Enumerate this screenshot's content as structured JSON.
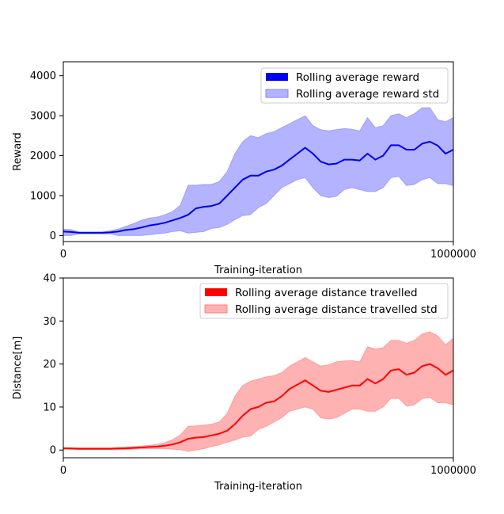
{
  "chart_data": [
    {
      "type": "line",
      "xlabel": "Training-iteration",
      "ylabel": "Reward",
      "xlim": [
        0,
        1000000
      ],
      "ylim": [
        -150,
        4350
      ],
      "xticks": [
        0,
        1000000
      ],
      "xtick_labels": [
        "0",
        "1000000"
      ],
      "yticks": [
        0,
        1000,
        2000,
        3000,
        4000
      ],
      "ytick_labels": [
        "0",
        "1000",
        "2000",
        "3000",
        "4000"
      ],
      "grid": false,
      "legend_position": "top-right",
      "x": [
        0,
        20000,
        40000,
        60000,
        80000,
        100000,
        120000,
        140000,
        160000,
        180000,
        200000,
        220000,
        240000,
        260000,
        280000,
        300000,
        320000,
        340000,
        360000,
        380000,
        400000,
        420000,
        440000,
        460000,
        480000,
        500000,
        520000,
        540000,
        560000,
        580000,
        600000,
        620000,
        640000,
        660000,
        680000,
        700000,
        720000,
        740000,
        760000,
        780000,
        800000,
        820000,
        840000,
        860000,
        880000,
        900000,
        920000,
        940000,
        960000,
        980000,
        1000000
      ],
      "series": [
        {
          "name": "Rolling average reward",
          "color": "#0000ee",
          "values": [
            100,
            90,
            70,
            70,
            70,
            70,
            80,
            100,
            140,
            160,
            200,
            250,
            280,
            320,
            380,
            440,
            520,
            680,
            720,
            740,
            800,
            1000,
            1200,
            1400,
            1500,
            1500,
            1600,
            1650,
            1750,
            1900,
            2050,
            2200,
            2050,
            1850,
            1780,
            1800,
            1900,
            1900,
            1880,
            2050,
            1900,
            2000,
            2260,
            2260,
            2150,
            2150,
            2300,
            2350,
            2250,
            2050,
            2150
          ]
        }
      ],
      "bands": [
        {
          "name": "Rolling average reward std",
          "color": "#8080ff",
          "lower": [
            0,
            0,
            40,
            40,
            40,
            40,
            40,
            0,
            0,
            0,
            0,
            20,
            40,
            60,
            100,
            120,
            60,
            80,
            100,
            180,
            200,
            280,
            400,
            500,
            520,
            700,
            800,
            1000,
            1200,
            1300,
            1400,
            1450,
            1200,
            1000,
            950,
            980,
            1150,
            1200,
            1150,
            1100,
            1100,
            1200,
            1450,
            1480,
            1250,
            1280,
            1400,
            1450,
            1300,
            1300,
            1250
          ],
          "upper": [
            160,
            150,
            90,
            90,
            90,
            90,
            120,
            160,
            230,
            300,
            380,
            440,
            460,
            520,
            600,
            760,
            1260,
            1260,
            1280,
            1280,
            1350,
            1600,
            2050,
            2350,
            2500,
            2450,
            2550,
            2600,
            2700,
            2800,
            2900,
            3000,
            2750,
            2650,
            2620,
            2650,
            2680,
            2660,
            2620,
            2950,
            2700,
            2750,
            3000,
            3050,
            2950,
            3050,
            3200,
            3200,
            2900,
            2850,
            2950
          ]
        }
      ],
      "legend": [
        "Rolling average reward",
        "Rolling average reward std"
      ]
    },
    {
      "type": "line",
      "xlabel": "Training-iteration",
      "ylabel": "Distance[m]",
      "xlim": [
        0,
        1000000
      ],
      "ylim": [
        -1.8,
        40
      ],
      "xticks": [
        0,
        1000000
      ],
      "xtick_labels": [
        "0",
        "1000000"
      ],
      "yticks": [
        0,
        10,
        20,
        30,
        40
      ],
      "ytick_labels": [
        "0",
        "10",
        "20",
        "30",
        "40"
      ],
      "grid": false,
      "legend_position": "top-right",
      "x": [
        0,
        20000,
        40000,
        60000,
        80000,
        100000,
        120000,
        140000,
        160000,
        180000,
        200000,
        220000,
        240000,
        260000,
        280000,
        300000,
        320000,
        340000,
        360000,
        380000,
        400000,
        420000,
        440000,
        460000,
        480000,
        500000,
        520000,
        540000,
        560000,
        580000,
        600000,
        620000,
        640000,
        660000,
        680000,
        700000,
        720000,
        740000,
        760000,
        780000,
        800000,
        820000,
        840000,
        860000,
        880000,
        900000,
        920000,
        940000,
        960000,
        980000,
        1000000
      ],
      "series": [
        {
          "name": "Rolling average distance travelled",
          "color": "#ff0000",
          "values": [
            0.4,
            0.35,
            0.3,
            0.3,
            0.3,
            0.3,
            0.3,
            0.35,
            0.4,
            0.5,
            0.6,
            0.7,
            0.8,
            1.0,
            1.3,
            1.8,
            2.6,
            2.9,
            3.0,
            3.4,
            3.8,
            4.5,
            6.0,
            8.0,
            9.5,
            10.0,
            11.0,
            11.3,
            12.5,
            14.2,
            15.2,
            16.2,
            15.0,
            13.8,
            13.5,
            14.0,
            14.5,
            15.0,
            15.0,
            16.5,
            15.5,
            16.5,
            18.5,
            18.8,
            17.5,
            18.0,
            19.5,
            20.0,
            19.0,
            17.5,
            18.5
          ]
        }
      ],
      "bands": [
        {
          "name": "Rolling average distance travelled std",
          "color": "#ff7f7f",
          "lower": [
            0.2,
            0.15,
            0.1,
            0.1,
            0.1,
            0.1,
            0.1,
            0.1,
            0.1,
            0.2,
            0.3,
            0.3,
            0.3,
            0.3,
            0.2,
            0.1,
            -0.3,
            0.0,
            0.3,
            0.8,
            1.2,
            1.8,
            2.3,
            3.0,
            3.2,
            4.8,
            5.5,
            6.5,
            7.5,
            9.0,
            9.5,
            10.0,
            9.5,
            7.5,
            7.2,
            7.5,
            8.5,
            9.5,
            9.5,
            9.0,
            9.0,
            10.0,
            12.0,
            12.0,
            10.2,
            10.5,
            12.0,
            12.2,
            11.0,
            11.0,
            10.5
          ],
          "upper": [
            0.6,
            0.55,
            0.5,
            0.5,
            0.5,
            0.5,
            0.5,
            0.6,
            0.7,
            0.8,
            0.9,
            1.1,
            1.3,
            1.7,
            2.4,
            3.5,
            5.5,
            5.6,
            5.8,
            6.0,
            6.5,
            8.5,
            12.5,
            15.0,
            16.0,
            16.5,
            17.0,
            17.3,
            18.0,
            19.5,
            20.5,
            21.5,
            20.5,
            19.5,
            19.8,
            20.5,
            20.7,
            20.8,
            20.5,
            24.0,
            23.5,
            23.8,
            25.5,
            25.5,
            24.8,
            25.5,
            27.0,
            27.5,
            26.5,
            24.5,
            26.0
          ]
        }
      ],
      "legend": [
        "Rolling average distance travelled",
        "Rolling average distance travelled std"
      ]
    }
  ]
}
